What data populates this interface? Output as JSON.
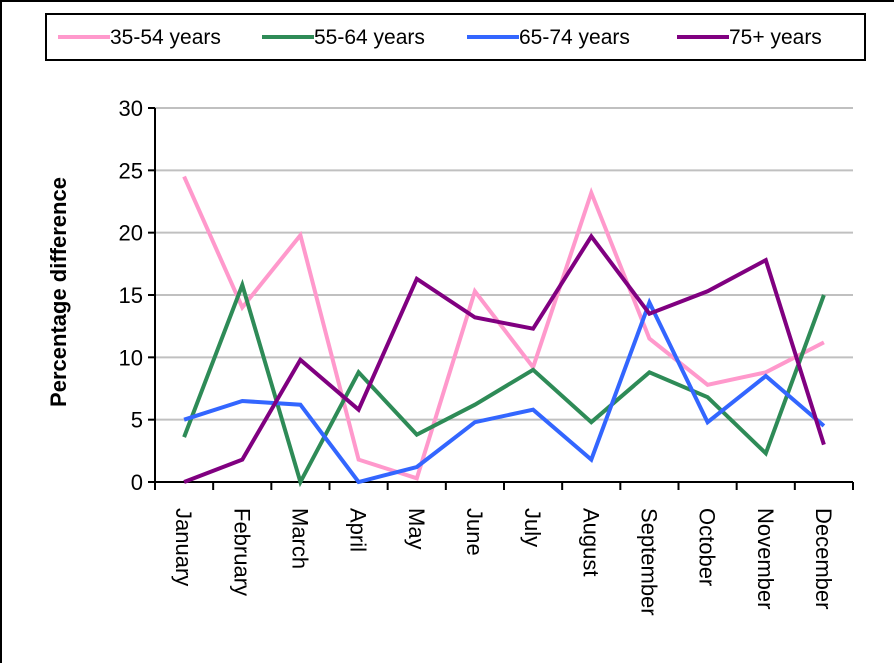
{
  "chart_data": {
    "type": "line",
    "ylabel": "Percentage difference",
    "xlabel": "",
    "ylim": [
      0,
      30
    ],
    "yticks": [
      "0",
      "5",
      "10",
      "15",
      "20",
      "25",
      "30"
    ],
    "grid": "horizontal",
    "legend_position": "top",
    "categories": [
      "January",
      "February",
      "March",
      "April",
      "May",
      "June",
      "July",
      "August",
      "September",
      "October",
      "November",
      "December"
    ],
    "series": [
      {
        "name": "35-54 years",
        "color": "#ff99cc",
        "values": [
          24.5,
          14,
          19.8,
          1.8,
          0.3,
          15.3,
          9.2,
          23.2,
          11.5,
          7.8,
          8.8,
          11.2
        ]
      },
      {
        "name": "55-64 years",
        "color": "#2e8b57",
        "values": [
          3.6,
          15.8,
          0,
          8.8,
          3.8,
          6.2,
          9.0,
          4.8,
          8.8,
          6.8,
          2.3,
          15.0
        ]
      },
      {
        "name": "65-74 years",
        "color": "#3366ff",
        "values": [
          5.0,
          6.5,
          6.2,
          0,
          1.2,
          4.8,
          5.8,
          1.8,
          14.4,
          4.8,
          8.5,
          4.5
        ]
      },
      {
        "name": "75+ years",
        "color": "#800080",
        "values": [
          0,
          1.8,
          9.8,
          5.8,
          16.3,
          13.2,
          12.3,
          19.7,
          13.5,
          15.3,
          17.8,
          3.0
        ]
      }
    ]
  }
}
